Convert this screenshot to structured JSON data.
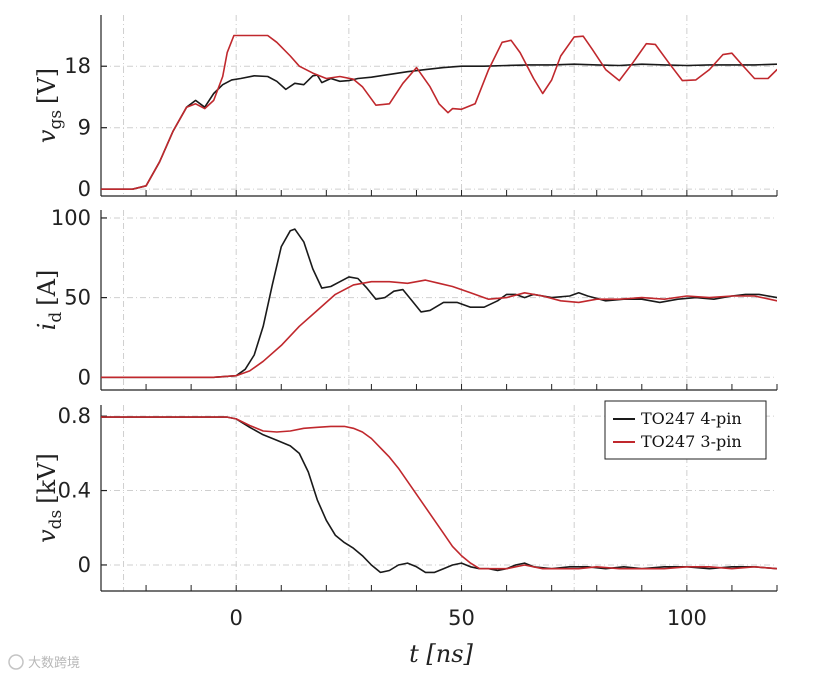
{
  "chart_data": {
    "type": "line",
    "colors": {
      "TO247 4-pin": "#1a1a1a",
      "TO247 3-pin": "#c0282d",
      "grid": "#cfcfcf"
    },
    "grid": true,
    "xlabel_parts": {
      "main": "t",
      "unit": "[ns]"
    },
    "xlim": [
      -30,
      120
    ],
    "xticks": [
      "0",
      "50",
      "100"
    ],
    "legend": {
      "placement": "top-right of bottom panel",
      "entries": [
        "TO247 4-pin",
        "TO247 3-pin"
      ]
    },
    "panels": [
      {
        "id": "vgs",
        "ylabel_parts": {
          "main": "v",
          "sub": "gs",
          "unit": "[V]"
        },
        "ylim": [
          -1,
          25.5
        ],
        "yticks": [
          "0",
          "9",
          "18"
        ],
        "series": [
          {
            "name": "TO247 4-pin",
            "x": [
              -30,
              -23,
              -20,
              -17,
              -14,
              -11,
              -9,
              -7,
              -5,
              -3,
              -1,
              1,
              4,
              7,
              9,
              11,
              13,
              15,
              17,
              18,
              19,
              21,
              23,
              25,
              27,
              30,
              34,
              38,
              42,
              46,
              50,
              55,
              60,
              65,
              70,
              75,
              80,
              85,
              90,
              95,
              100,
              105,
              110,
              115,
              120
            ],
            "y": [
              0,
              0,
              0.5,
              4,
              8.5,
              12,
              13,
              12,
              14,
              15.3,
              16,
              16.2,
              16.6,
              16.5,
              15.8,
              14.6,
              15.5,
              15.3,
              16.6,
              16.7,
              15.6,
              16.2,
              15.8,
              15.9,
              16.2,
              16.4,
              16.8,
              17.2,
              17.5,
              17.8,
              18,
              18,
              18.1,
              18.2,
              18.2,
              18.3,
              18.2,
              18.1,
              18.3,
              18.2,
              18.1,
              18.2,
              18.2,
              18.2,
              18.3
            ]
          },
          {
            "name": "TO247 3-pin",
            "x": [
              -30,
              -23,
              -20,
              -17,
              -14,
              -11,
              -9,
              -7,
              -5,
              -3,
              -2,
              -0.5,
              1,
              4,
              7,
              9,
              12,
              14,
              17,
              20,
              23,
              26,
              28,
              31,
              34,
              37,
              40,
              43,
              45,
              47,
              48,
              50,
              53,
              56,
              59,
              61,
              63,
              66,
              68,
              70,
              72,
              75,
              77,
              79,
              82,
              85,
              88,
              91,
              93,
              96,
              99,
              102,
              105,
              108,
              110,
              112,
              115,
              118,
              120
            ],
            "y": [
              0,
              0,
              0.5,
              4,
              8.5,
              12,
              12.5,
              11.8,
              13,
              16.5,
              20,
              22.5,
              22.5,
              22.5,
              22.5,
              21.5,
              19.5,
              18,
              17,
              16.2,
              16.5,
              16.1,
              15,
              12.3,
              12.5,
              15.5,
              17.8,
              15,
              12.5,
              11.2,
              11.8,
              11.7,
              12.5,
              17.5,
              21.5,
              21.8,
              20,
              16.2,
              14,
              16,
              19.5,
              22.3,
              22.4,
              20.5,
              17.5,
              15.9,
              18.5,
              21.3,
              21.2,
              18.5,
              15.9,
              16,
              17.5,
              19.7,
              19.9,
              18.4,
              16.2,
              16.2,
              17.5
            ]
          }
        ]
      },
      {
        "id": "id",
        "ylabel_parts": {
          "main": "i",
          "sub": "d",
          "unit": "[A]"
        },
        "ylim": [
          -8,
          105
        ],
        "yticks": [
          "0",
          "50",
          "100"
        ],
        "series": [
          {
            "name": "TO247 4-pin",
            "x": [
              -30,
              -5,
              0,
              2,
              4,
              6,
              8,
              10,
              12,
              13,
              15,
              17,
              19,
              21,
              23,
              25,
              27,
              29,
              31,
              33,
              35,
              37,
              39,
              41,
              43,
              46,
              49,
              52,
              55,
              58,
              60,
              62,
              64,
              66,
              70,
              74,
              76,
              78,
              82,
              86,
              90,
              94,
              98,
              102,
              106,
              110,
              113,
              116,
              120
            ],
            "y": [
              0,
              0,
              1,
              5,
              14,
              32,
              58,
              82,
              92,
              93,
              85,
              68,
              56,
              57,
              60,
              63,
              62,
              56,
              49,
              50,
              54,
              55,
              48,
              41,
              42,
              47,
              47,
              44,
              44,
              48,
              52,
              52,
              50,
              52,
              50,
              51,
              53,
              51,
              48,
              49,
              49,
              47,
              49,
              50,
              49,
              51,
              52,
              52,
              50
            ]
          },
          {
            "name": "TO247 3-pin",
            "x": [
              -30,
              -5,
              0,
              3,
              6,
              10,
              14,
              18,
              22,
              26,
              30,
              34,
              38,
              42,
              45,
              48,
              52,
              56,
              60,
              64,
              68,
              72,
              76,
              80,
              85,
              90,
              95,
              100,
              105,
              110,
              115,
              120
            ],
            "y": [
              0,
              0,
              1,
              4,
              10,
              20,
              32,
              42,
              52,
              58,
              60,
              60,
              59,
              61,
              59,
              57,
              53,
              49,
              50,
              53,
              51,
              48,
              47,
              49,
              49,
              50,
              49,
              51,
              50,
              51,
              51,
              48
            ]
          }
        ]
      },
      {
        "id": "vds",
        "ylabel_parts": {
          "main": "v",
          "sub": "ds",
          "unit": "[kV]"
        },
        "ylim": [
          -0.14,
          0.86
        ],
        "yticks": [
          "0",
          "0.4",
          "0.8"
        ],
        "series": [
          {
            "name": "TO247 4-pin",
            "x": [
              -30,
              -5,
              -2,
              0,
              3,
              6,
              9,
              12,
              14,
              16,
              18,
              20,
              22,
              24,
              26,
              28,
              30,
              32,
              34,
              36,
              38,
              40,
              42,
              44,
              46,
              48,
              50,
              52,
              54,
              56,
              58,
              60,
              62,
              64,
              66,
              70,
              74,
              78,
              82,
              86,
              90,
              95,
              100,
              105,
              110,
              115,
              120
            ],
            "y": [
              0.795,
              0.795,
              0.795,
              0.785,
              0.74,
              0.7,
              0.67,
              0.64,
              0.6,
              0.5,
              0.35,
              0.24,
              0.16,
              0.12,
              0.09,
              0.05,
              0.0,
              -0.04,
              -0.03,
              0.0,
              0.01,
              -0.01,
              -0.04,
              -0.04,
              -0.02,
              0.0,
              0.01,
              -0.01,
              -0.02,
              -0.02,
              -0.03,
              -0.02,
              0.0,
              0.01,
              -0.01,
              -0.02,
              -0.01,
              -0.01,
              -0.02,
              -0.01,
              -0.02,
              -0.01,
              -0.01,
              -0.02,
              -0.01,
              -0.01,
              -0.02
            ]
          },
          {
            "name": "TO247 3-pin",
            "x": [
              -30,
              -5,
              -2,
              0,
              3,
              6,
              9,
              12,
              15,
              18,
              21,
              24,
              26,
              28,
              30,
              32,
              34,
              36,
              38,
              40,
              42,
              44,
              46,
              48,
              50,
              52,
              54,
              56,
              58,
              60,
              62,
              64,
              68,
              72,
              76,
              80,
              85,
              90,
              95,
              100,
              105,
              110,
              115,
              120
            ],
            "y": [
              0.795,
              0.795,
              0.795,
              0.785,
              0.75,
              0.72,
              0.715,
              0.72,
              0.735,
              0.74,
              0.745,
              0.745,
              0.735,
              0.715,
              0.68,
              0.63,
              0.58,
              0.52,
              0.45,
              0.38,
              0.31,
              0.24,
              0.17,
              0.1,
              0.05,
              0.01,
              -0.02,
              -0.02,
              -0.02,
              -0.02,
              -0.01,
              0.0,
              -0.02,
              -0.02,
              -0.02,
              -0.01,
              -0.02,
              -0.02,
              -0.02,
              -0.01,
              -0.01,
              -0.02,
              -0.01,
              -0.02
            ]
          }
        ]
      }
    ]
  },
  "watermark": {
    "text": "大数跨境"
  }
}
